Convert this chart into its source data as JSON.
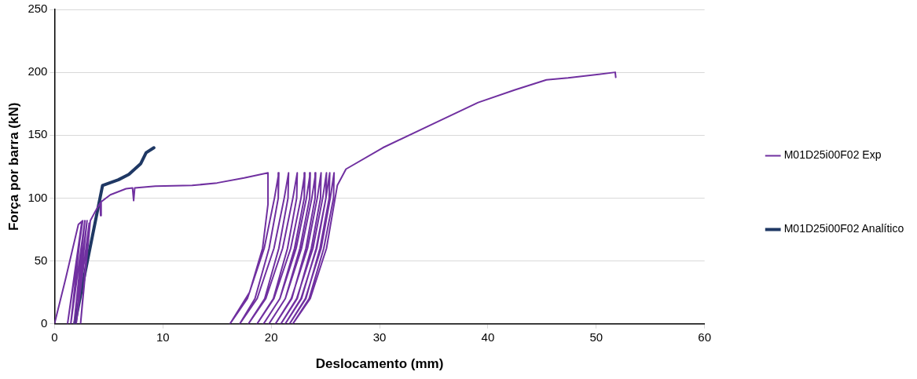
{
  "chart_data": {
    "type": "line",
    "xlabel": "Deslocamento (mm)",
    "ylabel": "Força por barra (kN)",
    "xlim": [
      0,
      60
    ],
    "xticks": [
      0,
      10,
      20,
      30,
      40,
      50,
      60
    ],
    "ylim": [
      0,
      250
    ],
    "yticks": [
      0,
      50,
      100,
      150,
      200,
      250
    ],
    "grid": "y",
    "legend": "right",
    "marker": "none",
    "line_style": "solid",
    "series": [
      {
        "name": "M01D25i00F02 Exp",
        "color": "#7030a0",
        "x": [
          0,
          0.05,
          1.0,
          2.2,
          2.6,
          1.2,
          2.5,
          1.5,
          2.8,
          1.8,
          3.0,
          2.0,
          3.2,
          2.4,
          3.3,
          3.8,
          4.2,
          4.25,
          4.3,
          5.15,
          6.6,
          7.2,
          7.3,
          7.4,
          9.3,
          12.7,
          15,
          17.5,
          19.7,
          19.7,
          19.2,
          18.0,
          16.2,
          17.8,
          19.35,
          20.3,
          20.7,
          20.65,
          19.8,
          18.5,
          17.1,
          18.7,
          20.25,
          21.2,
          21.6,
          21.55,
          20.7,
          19.4,
          17.9,
          19.5,
          21.05,
          22.0,
          22.4,
          22.35,
          21.5,
          20.2,
          18.7,
          20.25,
          21.8,
          22.75,
          23.1,
          23.05,
          22.15,
          20.8,
          19.3,
          20.8,
          22.3,
          23.25,
          23.6,
          23.55,
          22.65,
          21.3,
          19.8,
          21.3,
          22.8,
          23.75,
          24.1,
          24.05,
          23.2,
          21.9,
          20.4,
          21.85,
          23.35,
          24.25,
          24.6,
          24.55,
          23.7,
          22.4,
          20.9,
          22.35,
          23.85,
          24.75,
          25.1,
          25.05,
          24.15,
          22.8,
          21.3,
          22.75,
          24.2,
          25.05,
          25.4,
          25.35,
          24.5,
          23.2,
          21.7,
          23.15,
          24.6,
          25.45,
          25.8,
          25.75,
          24.85,
          23.5,
          22.0,
          23.6,
          25.1,
          25.9,
          26.1,
          26.9,
          30.3,
          35.2,
          39.1,
          42.5,
          45.4,
          47.4,
          51.75,
          51.8
        ],
        "values": [
          0,
          2,
          35,
          79,
          82,
          0,
          80,
          0,
          82,
          0,
          82,
          0,
          80,
          0,
          82,
          90,
          96,
          86,
          97,
          102.6,
          107.4,
          108,
          98,
          108,
          109.5,
          110,
          112,
          116,
          120,
          95,
          60,
          25,
          0,
          20,
          60,
          100,
          120,
          100,
          60,
          20,
          0,
          20,
          60,
          100,
          120,
          100,
          60,
          20,
          0,
          20,
          60,
          100,
          120,
          100,
          60,
          20,
          0,
          20,
          60,
          100,
          120,
          100,
          60,
          20,
          0,
          20,
          60,
          100,
          120,
          100,
          60,
          20,
          0,
          20,
          60,
          100,
          120,
          100,
          60,
          20,
          0,
          20,
          60,
          100,
          120,
          100,
          60,
          20,
          0,
          20,
          60,
          100,
          120,
          100,
          60,
          20,
          0,
          20,
          60,
          100,
          120,
          100,
          60,
          20,
          0,
          20,
          60,
          100,
          120,
          100,
          60,
          20,
          0,
          20,
          60,
          100,
          110,
          123,
          140,
          160,
          176,
          186,
          194,
          195.5,
          200,
          196
        ]
      },
      {
        "name": "M01D25i00F02 Analítico",
        "color": "#1f3864",
        "x": [
          1.87,
          4.43,
          5.89,
          6.86,
          7.96,
          8.45,
          9.17
        ],
        "values": [
          0,
          110,
          114.5,
          118.8,
          127.4,
          136,
          140
        ]
      }
    ]
  }
}
